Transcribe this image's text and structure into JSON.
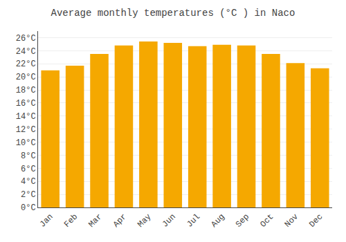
{
  "chart_data": {
    "type": "bar",
    "title": "Average monthly temperatures (°C ) in Naco",
    "categories": [
      "Jan",
      "Feb",
      "Mar",
      "Apr",
      "May",
      "Jun",
      "Jul",
      "Aug",
      "Sep",
      "Oct",
      "Nov",
      "Dec"
    ],
    "values": [
      21.0,
      21.7,
      23.5,
      24.8,
      25.4,
      25.2,
      24.7,
      24.9,
      24.8,
      23.5,
      22.1,
      21.3
    ],
    "color": "#F5A800",
    "ylim": [
      0,
      27
    ],
    "yticks": [
      {
        "value": 0,
        "label": "0°C"
      },
      {
        "value": 2,
        "label": "2°C"
      },
      {
        "value": 4,
        "label": "4°C"
      },
      {
        "value": 6,
        "label": "6°C"
      },
      {
        "value": 8,
        "label": "8°C"
      },
      {
        "value": 10,
        "label": "10°C"
      },
      {
        "value": 12,
        "label": "12°C"
      },
      {
        "value": 14,
        "label": "14°C"
      },
      {
        "value": 16,
        "label": "16°C"
      },
      {
        "value": 18,
        "label": "18°C"
      },
      {
        "value": 20,
        "label": "20°C"
      },
      {
        "value": 22,
        "label": "22°C"
      },
      {
        "value": 24,
        "label": "24°C"
      },
      {
        "value": 26,
        "label": "26°C"
      }
    ],
    "grid": true
  }
}
